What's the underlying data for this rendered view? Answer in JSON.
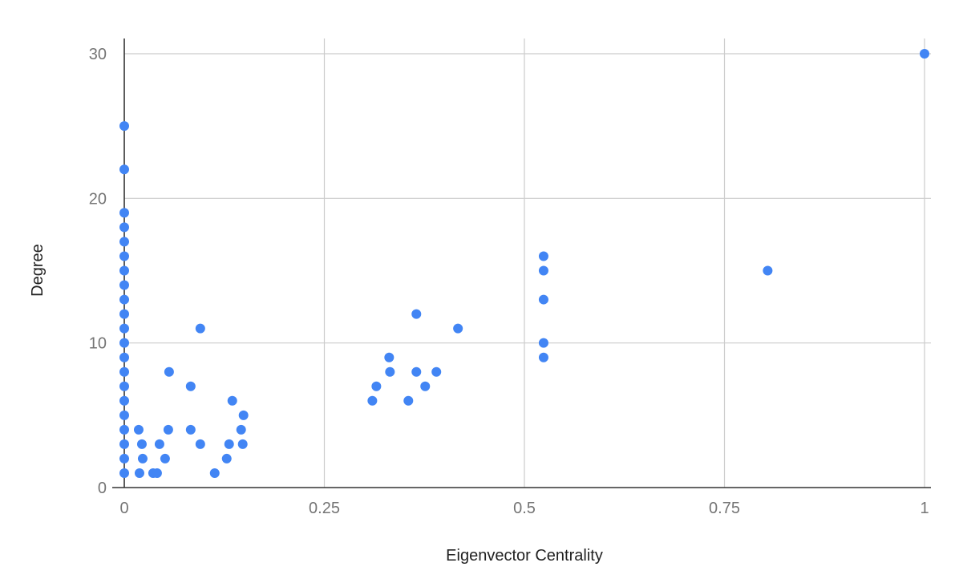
{
  "chart_data": {
    "type": "scatter",
    "title": "",
    "xlabel": "Eigenvector Centrality",
    "ylabel": "Degree",
    "xlim": [
      0,
      1
    ],
    "ylim": [
      0,
      30
    ],
    "x_ticks": [
      {
        "value": 0,
        "label": "0"
      },
      {
        "value": 0.25,
        "label": "0.25"
      },
      {
        "value": 0.5,
        "label": "0.5"
      },
      {
        "value": 0.75,
        "label": "0.75"
      },
      {
        "value": 1,
        "label": "1"
      }
    ],
    "y_ticks": [
      {
        "value": 0,
        "label": "0"
      },
      {
        "value": 10,
        "label": "10"
      },
      {
        "value": 20,
        "label": "20"
      },
      {
        "value": 30,
        "label": "30"
      }
    ],
    "grid": true,
    "legend": "none",
    "point_color": "#4285f4",
    "points": [
      {
        "x": 0,
        "y": 1
      },
      {
        "x": 0,
        "y": 2
      },
      {
        "x": 0,
        "y": 3
      },
      {
        "x": 0,
        "y": 4
      },
      {
        "x": 0,
        "y": 5
      },
      {
        "x": 0,
        "y": 6
      },
      {
        "x": 0,
        "y": 7
      },
      {
        "x": 0,
        "y": 8
      },
      {
        "x": 0,
        "y": 9
      },
      {
        "x": 0,
        "y": 10
      },
      {
        "x": 0,
        "y": 11
      },
      {
        "x": 0,
        "y": 12
      },
      {
        "x": 0,
        "y": 13
      },
      {
        "x": 0,
        "y": 14
      },
      {
        "x": 0,
        "y": 15
      },
      {
        "x": 0,
        "y": 16
      },
      {
        "x": 0,
        "y": 17
      },
      {
        "x": 0,
        "y": 18
      },
      {
        "x": 0,
        "y": 19
      },
      {
        "x": 0,
        "y": 22
      },
      {
        "x": 0,
        "y": 25
      },
      {
        "x": 0.018,
        "y": 4
      },
      {
        "x": 0.019,
        "y": 1
      },
      {
        "x": 0.022,
        "y": 3
      },
      {
        "x": 0.023,
        "y": 2
      },
      {
        "x": 0.036,
        "y": 1
      },
      {
        "x": 0.041,
        "y": 1
      },
      {
        "x": 0.044,
        "y": 3
      },
      {
        "x": 0.051,
        "y": 2
      },
      {
        "x": 0.055,
        "y": 4
      },
      {
        "x": 0.056,
        "y": 8
      },
      {
        "x": 0.083,
        "y": 4
      },
      {
        "x": 0.083,
        "y": 7
      },
      {
        "x": 0.095,
        "y": 3
      },
      {
        "x": 0.095,
        "y": 11
      },
      {
        "x": 0.113,
        "y": 1
      },
      {
        "x": 0.128,
        "y": 2
      },
      {
        "x": 0.131,
        "y": 3
      },
      {
        "x": 0.135,
        "y": 6
      },
      {
        "x": 0.146,
        "y": 4
      },
      {
        "x": 0.148,
        "y": 3
      },
      {
        "x": 0.149,
        "y": 5
      },
      {
        "x": 0.31,
        "y": 6
      },
      {
        "x": 0.315,
        "y": 7
      },
      {
        "x": 0.331,
        "y": 9
      },
      {
        "x": 0.332,
        "y": 8
      },
      {
        "x": 0.355,
        "y": 6
      },
      {
        "x": 0.365,
        "y": 8
      },
      {
        "x": 0.365,
        "y": 12
      },
      {
        "x": 0.376,
        "y": 7
      },
      {
        "x": 0.39,
        "y": 8
      },
      {
        "x": 0.417,
        "y": 11
      },
      {
        "x": 0.524,
        "y": 9
      },
      {
        "x": 0.524,
        "y": 10
      },
      {
        "x": 0.524,
        "y": 13
      },
      {
        "x": 0.524,
        "y": 15
      },
      {
        "x": 0.524,
        "y": 16
      },
      {
        "x": 0.804,
        "y": 15
      },
      {
        "x": 1,
        "y": 30
      }
    ]
  }
}
